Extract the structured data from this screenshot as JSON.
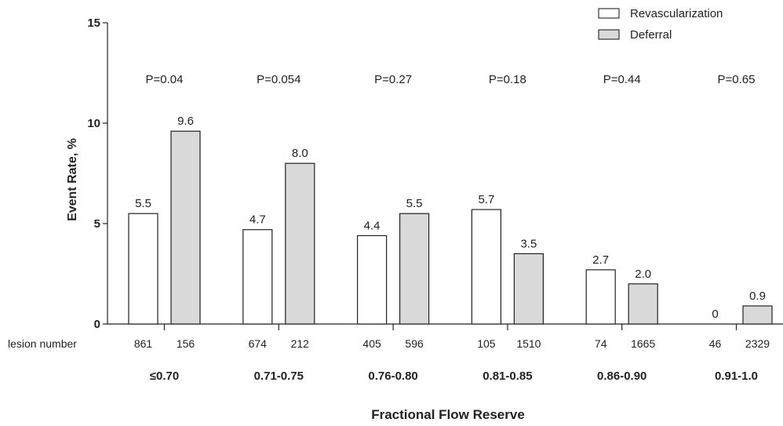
{
  "chart_data": {
    "type": "bar",
    "xlabel": "Fractional Flow Reserve",
    "ylabel": "Event Rate, %",
    "ylim": [
      0,
      15
    ],
    "yticks": [
      0,
      5,
      10,
      15
    ],
    "categories": [
      "≤0.70",
      "0.71-0.75",
      "0.76-0.80",
      "0.81-0.85",
      "0.86-0.90",
      "0.91-1.0"
    ],
    "series": [
      {
        "name": "Revascularization",
        "color": "#ffffff",
        "values": [
          5.5,
          4.7,
          4.4,
          5.7,
          2.7,
          0
        ],
        "labels": [
          "5.5",
          "4.7",
          "4.4",
          "5.7",
          "2.7",
          "0"
        ],
        "lesion_numbers": [
          "861",
          "674",
          "405",
          "105",
          "74",
          "46"
        ]
      },
      {
        "name": "Deferral",
        "color": "#d9d9d9",
        "values": [
          9.6,
          8.0,
          5.5,
          3.5,
          2.0,
          0.9
        ],
        "labels": [
          "9.6",
          "8.0",
          "5.5",
          "3.5",
          "2.0",
          "0.9"
        ],
        "lesion_numbers": [
          "156",
          "212",
          "596",
          "1510",
          "1665",
          "2329"
        ]
      }
    ],
    "p_values": [
      "P=0.04",
      "P=0.054",
      "P=0.27",
      "P=0.18",
      "P=0.44",
      "P=0.65"
    ],
    "row_label": "lesion number",
    "legend_position": "top-right",
    "grid": false
  }
}
